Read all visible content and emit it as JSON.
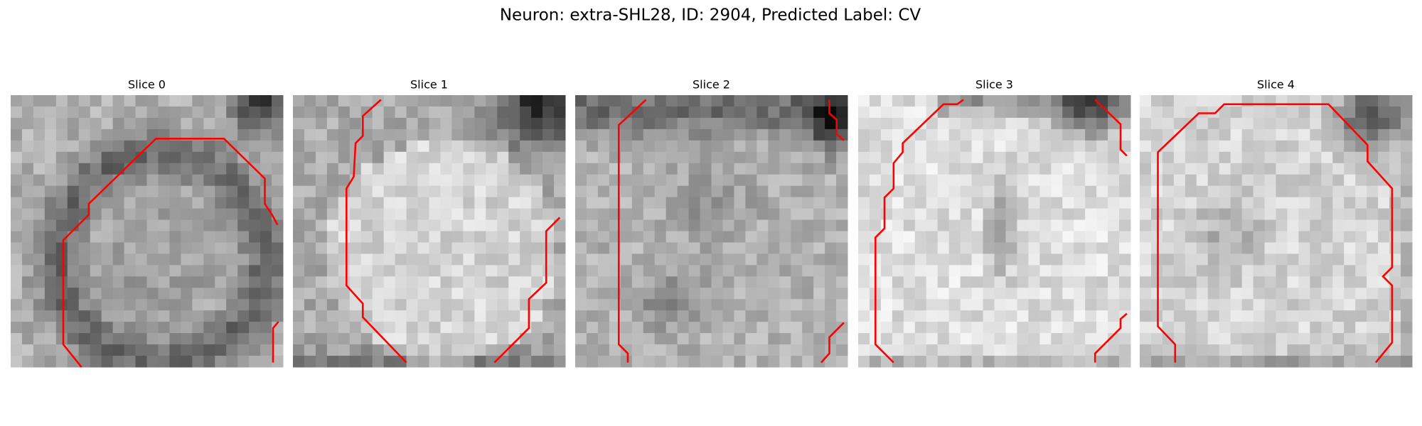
{
  "title": "Neuron: extra-SHL28, ID: 2904, Predicted Label: CV",
  "panels": [
    {
      "title": "Slice 0"
    },
    {
      "title": "Slice 1"
    },
    {
      "title": "Slice 2"
    },
    {
      "title": "Slice 3"
    },
    {
      "title": "Slice 4"
    }
  ]
}
